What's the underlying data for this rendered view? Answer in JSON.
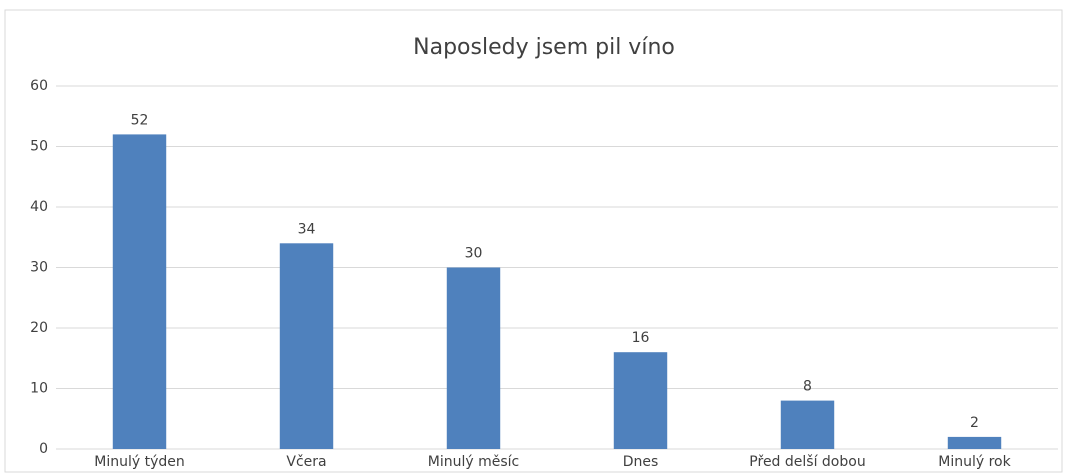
{
  "chart_data": {
    "type": "bar",
    "title": "Naposledy jsem pil víno",
    "categories": [
      "Minulý týden",
      "Včera",
      "Minulý měsíc",
      "Dnes",
      "Před delší dobou",
      "Minulý rok"
    ],
    "values": [
      52,
      34,
      30,
      16,
      8,
      2
    ],
    "color": "#4f81bd",
    "ylim": [
      0,
      60
    ],
    "yticks": [
      0,
      10,
      20,
      30,
      40,
      50,
      60
    ],
    "grid": true
  }
}
